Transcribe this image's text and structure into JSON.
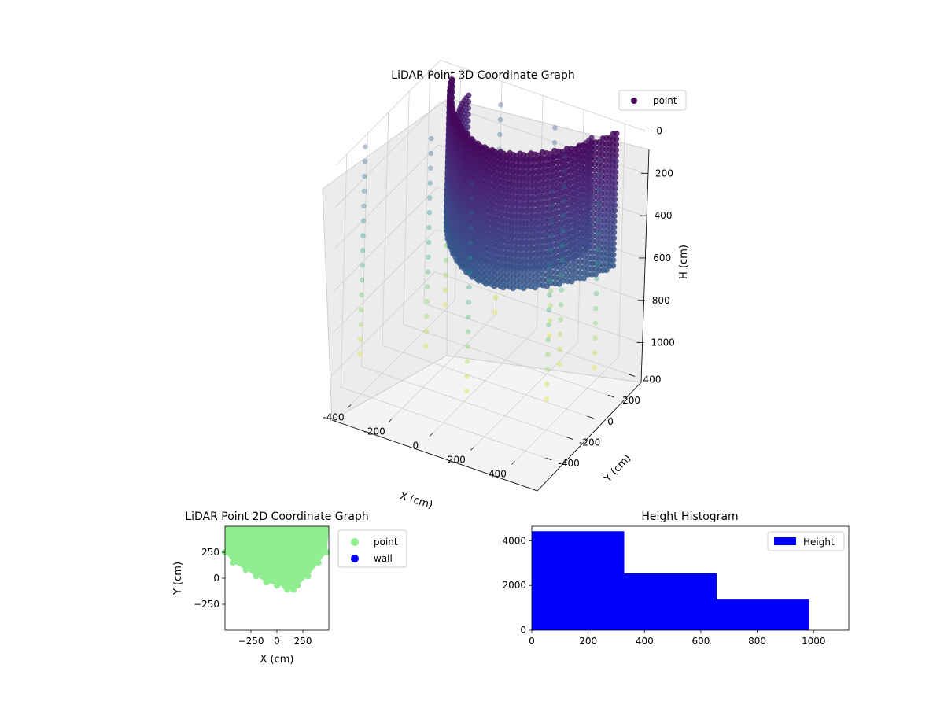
{
  "chart_data": [
    {
      "type": "scatter",
      "projection": "3d",
      "title": "LiDAR Point 3D Coordinate Graph",
      "xlabel": "X (cm)",
      "ylabel": "Y (cm)",
      "zlabel": "H (cm)",
      "xlim": [
        -500,
        500
      ],
      "ylim": [
        -500,
        500
      ],
      "zlim": [
        0,
        1100
      ],
      "z_inverted": true,
      "xticks": [
        -400,
        -200,
        0,
        200,
        400
      ],
      "yticks": [
        -400,
        -200,
        0,
        200,
        400
      ],
      "zticks": [
        0,
        200,
        400,
        600,
        800,
        1000
      ],
      "grid": true,
      "legend": {
        "position": "top-right",
        "entries": [
          "point"
        ]
      },
      "colormap": "viridis",
      "colors": {
        "legend_marker": "#440154"
      },
      "description_values": {
        "curtain_points": "dense curved wall of points spanning X from -400 to 450 and Y from -100 to 450, heights 0 to 700",
        "sparse_columns": "vertical columns of sparse points near X -450 to 450 at heights 0 to 1000"
      }
    },
    {
      "type": "scatter",
      "title": "LiDAR Point 2D Coordinate Graph",
      "xlabel": "X (cm)",
      "ylabel": "Y (cm)",
      "xlim": [
        -500,
        500
      ],
      "ylim": [
        -500,
        500
      ],
      "xticks": [
        "-250",
        "0",
        "250"
      ],
      "yticks": [
        "-250",
        "0",
        "250"
      ],
      "legend": {
        "position": "outside-right",
        "entries": [
          {
            "name": "point",
            "color": "#90ee90"
          },
          {
            "name": "wall",
            "color": "#0000ff"
          }
        ]
      },
      "series": [
        {
          "name": "point",
          "color": "#90ee90",
          "outline": [
            [
              -500,
              500
            ],
            [
              -500,
              250
            ],
            [
              -420,
              150
            ],
            [
              -300,
              80
            ],
            [
              -200,
              20
            ],
            [
              -100,
              -40
            ],
            [
              0,
              -70
            ],
            [
              80,
              -80
            ],
            [
              100,
              -110
            ],
            [
              130,
              -80
            ],
            [
              160,
              -110
            ],
            [
              200,
              -70
            ],
            [
              300,
              20
            ],
            [
              400,
              150
            ],
            [
              480,
              250
            ],
            [
              500,
              500
            ]
          ]
        },
        {
          "name": "wall",
          "color": "#0000ff",
          "points": []
        }
      ]
    },
    {
      "type": "bar",
      "title": "Height Histogram",
      "xlabel": "",
      "ylabel": "",
      "xlim": [
        0,
        1125
      ],
      "ylim": [
        0,
        4650
      ],
      "xticks": [
        "0",
        "200",
        "400",
        "600",
        "800",
        "1000"
      ],
      "yticks": [
        "0",
        "2000",
        "4000"
      ],
      "legend": {
        "position": "top-right",
        "entries": [
          {
            "name": "Height",
            "color": "#0000ff"
          }
        ]
      },
      "bins": [
        {
          "start": 0,
          "end": 328,
          "value": 4430
        },
        {
          "start": 328,
          "end": 656,
          "value": 2540
        },
        {
          "start": 656,
          "end": 984,
          "value": 1370
        }
      ]
    }
  ]
}
